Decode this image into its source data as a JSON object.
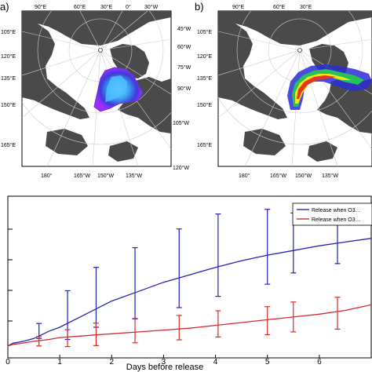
{
  "panels": {
    "a": {
      "label": "a)",
      "lon_labels_top": [
        "90°E",
        "60°E",
        "30°E",
        "0°",
        "30°W"
      ],
      "lat_labels_left": [
        "105°E",
        "120°E",
        "135°E",
        "150°E",
        "165°E"
      ],
      "lat_labels_right": [
        "45°W",
        "60°W",
        "75°W",
        "90°W",
        "105°W",
        "120°W"
      ],
      "lon_labels_bottom": [
        "180°",
        "165°W",
        "150°W",
        "135°W"
      ]
    },
    "b": {
      "label": "b)",
      "lon_labels_top": [
        "90°E",
        "60°E",
        "30°E"
      ],
      "lat_labels_left": [
        "105°E",
        "120°E",
        "135°E",
        "150°E",
        "165°E"
      ],
      "lon_labels_bottom": [
        "180°",
        "165°W",
        "150°W",
        "135°W"
      ]
    }
  },
  "chart_data": {
    "type": "line",
    "xlabel": "Days before release",
    "ylabel": "",
    "xlim": [
      0,
      7
    ],
    "x_ticks": [
      "0",
      "1",
      "2",
      "3",
      "4",
      "5",
      "6"
    ],
    "legend_position": "top-right",
    "series": [
      {
        "name": "Release when O3…",
        "color": "#2323b4",
        "x": [
          0,
          0.1,
          0.2,
          0.3,
          0.5,
          0.8,
          1.0,
          1.5,
          2.0,
          2.5,
          3.0,
          3.5,
          4.0,
          4.5,
          5.0,
          5.5,
          6.0,
          6.5,
          7.0
        ],
        "y": [
          0.3,
          0.45,
          0.5,
          0.55,
          0.7,
          1.1,
          1.3,
          2.0,
          2.7,
          3.2,
          3.7,
          4.1,
          4.5,
          4.85,
          5.15,
          5.4,
          5.65,
          5.85,
          6.05
        ],
        "error_x": [
          0.6,
          1.15,
          1.7,
          2.45,
          3.3,
          4.05,
          5.0,
          5.5,
          6.35
        ],
        "error_y": [
          1.1,
          1.95,
          2.9,
          3.65,
          4.45,
          5.15,
          5.6,
          5.8,
          6.0
        ],
        "error_half": [
          0.4,
          1.3,
          1.6,
          1.9,
          2.1,
          2.2,
          2.0,
          1.6,
          1.3
        ]
      },
      {
        "name": "Release when O3…",
        "color": "#d42a2a",
        "x": [
          0,
          0.1,
          0.2,
          0.3,
          0.5,
          0.8,
          1.0,
          1.5,
          2.0,
          2.5,
          3.0,
          3.5,
          4.0,
          4.5,
          5.0,
          5.5,
          6.0,
          6.5,
          7.0
        ],
        "y": [
          0.3,
          0.38,
          0.42,
          0.46,
          0.55,
          0.65,
          0.75,
          0.85,
          0.95,
          1.05,
          1.15,
          1.25,
          1.4,
          1.55,
          1.7,
          1.85,
          2.0,
          2.2,
          2.5
        ],
        "error_x": [
          0.6,
          1.15,
          1.7,
          2.45,
          3.3,
          4.05,
          5.0,
          5.5,
          6.35
        ],
        "error_y": [
          0.55,
          0.72,
          0.92,
          1.12,
          1.28,
          1.48,
          1.65,
          1.85,
          2.05
        ],
        "error_half": [
          0.25,
          0.45,
          0.6,
          0.65,
          0.65,
          0.7,
          0.75,
          0.8,
          0.85
        ]
      }
    ]
  },
  "colors": {
    "land": "#4a4a4a",
    "ocean": "#ffffff",
    "blue_series": "#2323b4",
    "red_series": "#d42a2a"
  }
}
